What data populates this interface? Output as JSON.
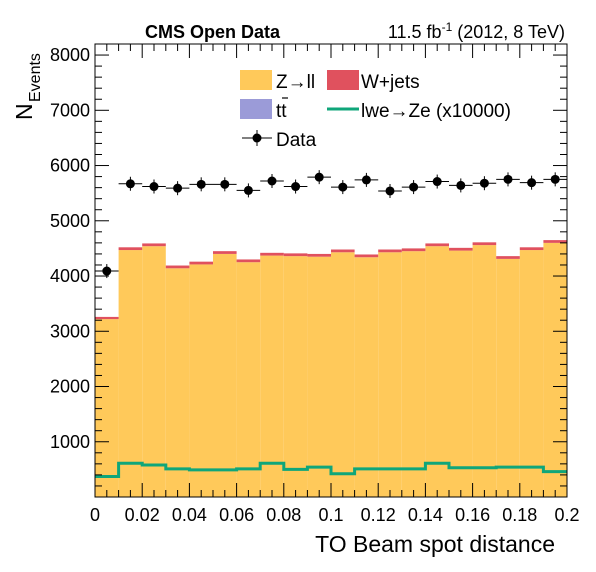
{
  "chart_data": {
    "type": "bar",
    "stacked_histogram": true,
    "title": "CMS Open Data",
    "lumi_main": "11.5 fb",
    "lumi_sup": "-1",
    "lumi_rest": " (2012, 8 TeV)",
    "xlabel": "TO Beam spot distance",
    "ylabel_main": "N",
    "ylabel_sub": "Events",
    "xlim": [
      0,
      0.2
    ],
    "ylim": [
      0,
      8200
    ],
    "x_ticks": [
      0,
      0.02,
      0.04,
      0.06,
      0.08,
      0.1,
      0.12,
      0.14,
      0.16,
      0.18,
      0.2
    ],
    "x_tick_labels": [
      "0",
      "0.02",
      "0.04",
      "0.06",
      "0.08",
      "0.1",
      "0.12",
      "0.14",
      "0.16",
      "0.18",
      "0.2"
    ],
    "y_ticks": [
      1000,
      2000,
      3000,
      4000,
      5000,
      6000,
      7000,
      8000
    ],
    "y_tick_labels": [
      "1000",
      "2000",
      "3000",
      "4000",
      "5000",
      "6000",
      "7000",
      "8000"
    ],
    "bin_edges": [
      0,
      0.01,
      0.02,
      0.03,
      0.04,
      0.05,
      0.06,
      0.07,
      0.08,
      0.09,
      0.1,
      0.11,
      0.12,
      0.13,
      0.14,
      0.15,
      0.16,
      0.17,
      0.18,
      0.19,
      0.2
    ],
    "series": [
      {
        "name": "Z→ll",
        "kind": "stack",
        "color": "#ffc95a",
        "values": [
          3220,
          4470,
          4540,
          4140,
          4210,
          4400,
          4250,
          4370,
          4360,
          4350,
          4430,
          4340,
          4430,
          4450,
          4540,
          4460,
          4560,
          4310,
          4470,
          4600
        ]
      },
      {
        "name": "W+jets",
        "kind": "stack",
        "color": "#e0515e",
        "values": [
          40,
          50,
          50,
          50,
          50,
          50,
          50,
          50,
          50,
          50,
          50,
          50,
          50,
          50,
          50,
          50,
          50,
          50,
          50,
          50
        ]
      },
      {
        "name": "tt̄",
        "label_main": "tt",
        "kind": "stack",
        "color": "#9b9bd8",
        "values": [
          0,
          0,
          0,
          0,
          0,
          0,
          0,
          0,
          0,
          0,
          0,
          0,
          0,
          0,
          0,
          0,
          0,
          0,
          0,
          0
        ]
      },
      {
        "name": "lwe→Ze (x10000)",
        "kind": "line",
        "color": "#0fa67a",
        "values": [
          370,
          610,
          580,
          510,
          490,
          490,
          510,
          610,
          500,
          540,
          420,
          510,
          510,
          510,
          610,
          530,
          530,
          540,
          540,
          460
        ]
      },
      {
        "name": "Data",
        "kind": "points",
        "color": "#000000",
        "values": [
          4090,
          5670,
          5620,
          5590,
          5660,
          5660,
          5550,
          5720,
          5620,
          5790,
          5610,
          5740,
          5540,
          5610,
          5710,
          5640,
          5680,
          5750,
          5690,
          5750
        ]
      }
    ],
    "legend_position": "top-center"
  }
}
